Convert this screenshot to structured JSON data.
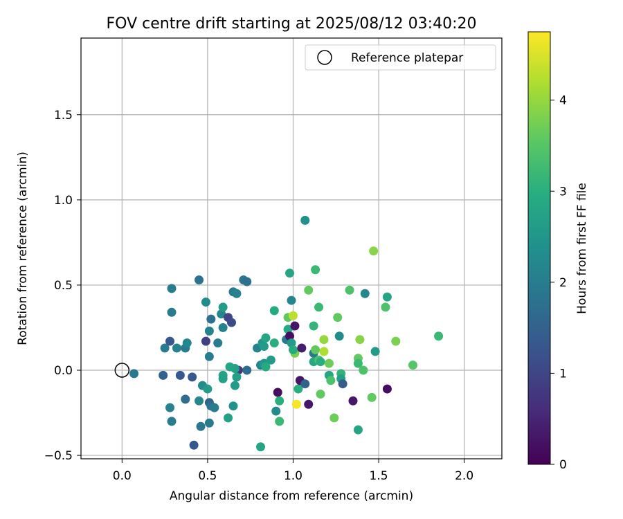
{
  "chart_data": {
    "type": "scatter",
    "title": "FOV centre drift starting at 2025/08/12 03:40:20",
    "xlabel": "Angular distance from reference (arcmin)",
    "ylabel": "Rotation from reference (arcmin)",
    "xlim": [
      -0.24,
      2.22
    ],
    "ylim": [
      -0.52,
      1.95
    ],
    "xticks": [
      0.0,
      0.5,
      1.0,
      1.5,
      2.0
    ],
    "xtick_labels": [
      "0.0",
      "0.5",
      "1.0",
      "1.5",
      "2.0"
    ],
    "yticks": [
      -0.5,
      0.0,
      0.5,
      1.0,
      1.5
    ],
    "ytick_labels": [
      "−0.5",
      "0.0",
      "0.5",
      "1.0",
      "1.5"
    ],
    "grid": true,
    "legend": {
      "position": "top-right",
      "entries": [
        "Reference platepar"
      ]
    },
    "reference_point": {
      "x": 0.0,
      "y": 0.0
    },
    "colorbar": {
      "label": "Hours from first FF file",
      "range": [
        0,
        4.75
      ],
      "ticks": [
        0,
        1,
        2,
        3,
        4
      ],
      "colormap": "viridis"
    },
    "points": [
      {
        "x": 0.07,
        "y": -0.02,
        "c": 1.9
      },
      {
        "x": 0.24,
        "y": -0.03,
        "c": 1.5
      },
      {
        "x": 0.34,
        "y": -0.03,
        "c": 1.3
      },
      {
        "x": 0.41,
        "y": -0.04,
        "c": 1.3
      },
      {
        "x": 0.25,
        "y": 0.13,
        "c": 2.0
      },
      {
        "x": 0.28,
        "y": 0.17,
        "c": 1.3
      },
      {
        "x": 0.32,
        "y": 0.13,
        "c": 2.1
      },
      {
        "x": 0.37,
        "y": 0.13,
        "c": 2.0
      },
      {
        "x": 0.38,
        "y": 0.16,
        "c": 2.2
      },
      {
        "x": 0.29,
        "y": 0.48,
        "c": 2.0
      },
      {
        "x": 0.29,
        "y": 0.34,
        "c": 2.0
      },
      {
        "x": 0.45,
        "y": 0.53,
        "c": 1.8
      },
      {
        "x": 0.49,
        "y": 0.4,
        "c": 2.3
      },
      {
        "x": 0.49,
        "y": 0.17,
        "c": 0.9
      },
      {
        "x": 0.51,
        "y": 0.23,
        "c": 2.1
      },
      {
        "x": 0.51,
        "y": 0.08,
        "c": 2.0
      },
      {
        "x": 0.52,
        "y": 0.3,
        "c": 1.8
      },
      {
        "x": 0.56,
        "y": 0.16,
        "c": 2.0
      },
      {
        "x": 0.58,
        "y": 0.33,
        "c": 2.2
      },
      {
        "x": 0.59,
        "y": 0.37,
        "c": 2.6
      },
      {
        "x": 0.59,
        "y": 0.25,
        "c": 2.1
      },
      {
        "x": 0.62,
        "y": 0.31,
        "c": 1.0
      },
      {
        "x": 0.64,
        "y": 0.28,
        "c": 1.1
      },
      {
        "x": 0.65,
        "y": 0.46,
        "c": 2.0
      },
      {
        "x": 0.67,
        "y": 0.45,
        "c": 2.1
      },
      {
        "x": 0.71,
        "y": 0.53,
        "c": 1.9
      },
      {
        "x": 0.73,
        "y": 0.52,
        "c": 1.8
      },
      {
        "x": 0.68,
        "y": 0.0,
        "c": 0.8
      },
      {
        "x": 0.73,
        "y": 0.0,
        "c": 1.7
      },
      {
        "x": 0.66,
        "y": 0.01,
        "c": 2.7
      },
      {
        "x": 0.63,
        "y": 0.02,
        "c": 2.8
      },
      {
        "x": 0.59,
        "y": -0.03,
        "c": 2.8
      },
      {
        "x": 0.59,
        "y": -0.05,
        "c": 2.7
      },
      {
        "x": 0.67,
        "y": -0.04,
        "c": 2.7
      },
      {
        "x": 0.66,
        "y": -0.09,
        "c": 2.6
      },
      {
        "x": 0.47,
        "y": -0.09,
        "c": 2.3
      },
      {
        "x": 0.5,
        "y": -0.11,
        "c": 2.6
      },
      {
        "x": 0.45,
        "y": -0.18,
        "c": 2.2
      },
      {
        "x": 0.51,
        "y": -0.19,
        "c": 1.5
      },
      {
        "x": 0.52,
        "y": -0.21,
        "c": 1.8
      },
      {
        "x": 0.54,
        "y": -0.22,
        "c": 2.0
      },
      {
        "x": 0.37,
        "y": -0.17,
        "c": 1.7
      },
      {
        "x": 0.28,
        "y": -0.22,
        "c": 2.1
      },
      {
        "x": 0.29,
        "y": -0.3,
        "c": 2.0
      },
      {
        "x": 0.46,
        "y": -0.33,
        "c": 1.9
      },
      {
        "x": 0.51,
        "y": -0.31,
        "c": 2.0
      },
      {
        "x": 0.42,
        "y": -0.44,
        "c": 1.3
      },
      {
        "x": 0.62,
        "y": -0.28,
        "c": 2.7
      },
      {
        "x": 0.65,
        "y": -0.21,
        "c": 2.4
      },
      {
        "x": 0.81,
        "y": -0.45,
        "c": 2.8
      },
      {
        "x": 0.79,
        "y": 0.13,
        "c": 2.1
      },
      {
        "x": 0.82,
        "y": 0.16,
        "c": 2.5
      },
      {
        "x": 0.83,
        "y": 0.14,
        "c": 2.6
      },
      {
        "x": 0.84,
        "y": 0.19,
        "c": 2.8
      },
      {
        "x": 0.81,
        "y": 0.03,
        "c": 2.2
      },
      {
        "x": 0.83,
        "y": 0.04,
        "c": 2.5
      },
      {
        "x": 0.84,
        "y": 0.02,
        "c": 2.9
      },
      {
        "x": 0.87,
        "y": 0.06,
        "c": 2.6
      },
      {
        "x": 0.89,
        "y": 0.16,
        "c": 3.0
      },
      {
        "x": 0.89,
        "y": 0.35,
        "c": 2.9
      },
      {
        "x": 0.9,
        "y": -0.24,
        "c": 2.3
      },
      {
        "x": 0.91,
        "y": -0.13,
        "c": 0.2
      },
      {
        "x": 0.92,
        "y": -0.18,
        "c": 3.0
      },
      {
        "x": 0.92,
        "y": -0.3,
        "c": 3.2
      },
      {
        "x": 0.96,
        "y": 0.18,
        "c": 2.0
      },
      {
        "x": 0.97,
        "y": 0.31,
        "c": 3.6
      },
      {
        "x": 0.97,
        "y": 0.24,
        "c": 2.9
      },
      {
        "x": 0.98,
        "y": 0.2,
        "c": 0.2
      },
      {
        "x": 0.99,
        "y": 0.16,
        "c": 2.6
      },
      {
        "x": 0.98,
        "y": 0.57,
        "c": 2.8
      },
      {
        "x": 0.99,
        "y": 0.41,
        "c": 2.2
      },
      {
        "x": 1.0,
        "y": 0.32,
        "c": 4.3
      },
      {
        "x": 1.01,
        "y": 0.26,
        "c": 0.3
      },
      {
        "x": 1.01,
        "y": 0.1,
        "c": 3.8
      },
      {
        "x": 1.0,
        "y": 0.12,
        "c": 2.9
      },
      {
        "x": 1.02,
        "y": -0.2,
        "c": 4.7
      },
      {
        "x": 1.03,
        "y": -0.11,
        "c": 3.0
      },
      {
        "x": 1.04,
        "y": -0.06,
        "c": 0.3
      },
      {
        "x": 1.05,
        "y": 0.13,
        "c": 0.4
      },
      {
        "x": 1.07,
        "y": -0.08,
        "c": 1.5
      },
      {
        "x": 1.07,
        "y": 0.88,
        "c": 2.4
      },
      {
        "x": 1.09,
        "y": 0.47,
        "c": 3.6
      },
      {
        "x": 1.09,
        "y": -0.2,
        "c": 0.3
      },
      {
        "x": 1.12,
        "y": 0.26,
        "c": 3.1
      },
      {
        "x": 1.12,
        "y": 0.1,
        "c": 1.9
      },
      {
        "x": 1.12,
        "y": 0.05,
        "c": 2.9
      },
      {
        "x": 1.13,
        "y": 0.59,
        "c": 3.2
      },
      {
        "x": 1.13,
        "y": 0.12,
        "c": 3.6
      },
      {
        "x": 1.15,
        "y": 0.37,
        "c": 3.2
      },
      {
        "x": 1.15,
        "y": 0.06,
        "c": 3.4
      },
      {
        "x": 1.16,
        "y": -0.14,
        "c": 3.6
      },
      {
        "x": 1.16,
        "y": 0.05,
        "c": 3.0
      },
      {
        "x": 1.18,
        "y": 0.18,
        "c": 4.0
      },
      {
        "x": 1.18,
        "y": 0.11,
        "c": 4.2
      },
      {
        "x": 1.21,
        "y": -0.03,
        "c": 2.8
      },
      {
        "x": 1.21,
        "y": 0.04,
        "c": 3.7
      },
      {
        "x": 1.22,
        "y": -0.06,
        "c": 3.4
      },
      {
        "x": 1.24,
        "y": -0.28,
        "c": 3.7
      },
      {
        "x": 1.26,
        "y": 0.31,
        "c": 3.6
      },
      {
        "x": 1.27,
        "y": 0.2,
        "c": 2.3
      },
      {
        "x": 1.28,
        "y": -0.02,
        "c": 3.1
      },
      {
        "x": 1.28,
        "y": -0.05,
        "c": 2.7
      },
      {
        "x": 1.29,
        "y": -0.08,
        "c": 1.4
      },
      {
        "x": 1.33,
        "y": 0.47,
        "c": 3.4
      },
      {
        "x": 1.35,
        "y": -0.18,
        "c": 0.3
      },
      {
        "x": 1.38,
        "y": 0.07,
        "c": 3.6
      },
      {
        "x": 1.38,
        "y": 0.04,
        "c": 3.2
      },
      {
        "x": 1.38,
        "y": -0.35,
        "c": 2.8
      },
      {
        "x": 1.39,
        "y": 0.18,
        "c": 3.9
      },
      {
        "x": 1.41,
        "y": 0.0,
        "c": 3.4
      },
      {
        "x": 1.42,
        "y": 0.45,
        "c": 2.2
      },
      {
        "x": 1.46,
        "y": -0.16,
        "c": 3.6
      },
      {
        "x": 1.47,
        "y": 0.7,
        "c": 3.9
      },
      {
        "x": 1.48,
        "y": 0.11,
        "c": 2.6
      },
      {
        "x": 1.54,
        "y": 0.37,
        "c": 3.4
      },
      {
        "x": 1.55,
        "y": 0.43,
        "c": 2.8
      },
      {
        "x": 1.55,
        "y": -0.11,
        "c": 0.2
      },
      {
        "x": 1.6,
        "y": 0.17,
        "c": 3.8
      },
      {
        "x": 1.7,
        "y": 0.03,
        "c": 3.5
      },
      {
        "x": 1.85,
        "y": 0.2,
        "c": 3.2
      }
    ]
  }
}
